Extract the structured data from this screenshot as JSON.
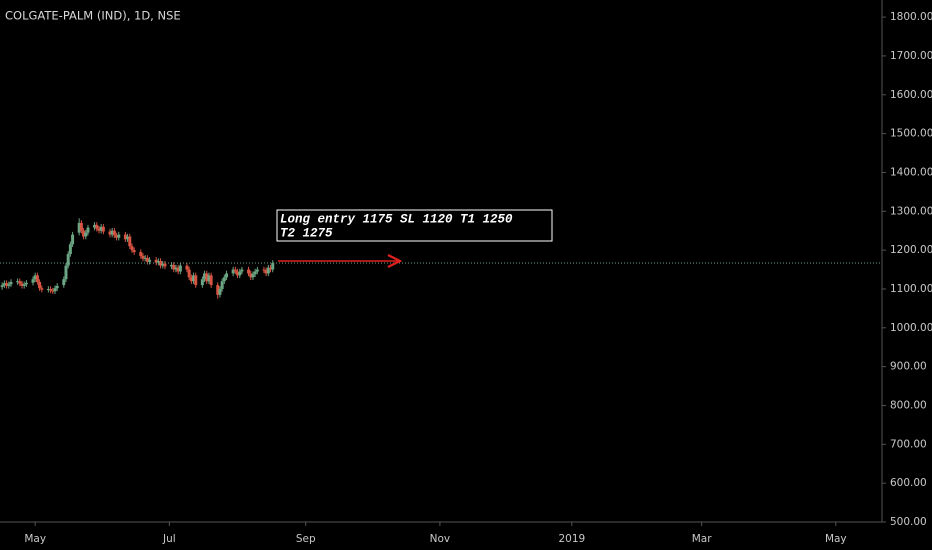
{
  "chart_data": {
    "type": "candlestick",
    "title": "COLGATE-PALM (IND), 1D, NSE",
    "x": [
      106,
      107,
      108,
      109,
      110,
      113,
      114,
      115,
      116,
      117,
      120,
      121,
      122,
      123,
      124,
      127,
      128,
      129,
      130,
      131,
      134,
      135,
      136,
      137,
      138,
      141,
      142,
      143,
      144,
      145,
      148,
      149,
      150,
      151,
      152,
      155,
      156,
      157,
      158,
      159,
      162,
      163,
      164,
      165,
      166,
      169,
      170,
      171,
      172,
      173,
      176,
      177,
      178,
      179,
      180,
      183,
      184,
      185,
      186,
      187,
      190,
      191,
      192,
      193,
      194,
      197,
      198,
      199,
      200,
      201,
      204,
      205,
      206,
      207,
      208,
      211,
      212,
      213,
      214,
      215,
      218,
      219,
      220,
      221,
      222,
      225,
      226,
      227,
      228,
      229
    ],
    "open": [
      1105,
      1110,
      1115,
      1108,
      1112,
      1118,
      1120,
      1114,
      1108,
      1112,
      1116,
      1125,
      1135,
      1118,
      1102,
      1098,
      1100,
      1096,
      1094,
      1102,
      1110,
      1125,
      1160,
      1190,
      1215,
      1245,
      1270,
      1250,
      1235,
      1245,
      1258,
      1265,
      1255,
      1250,
      1260,
      1248,
      1240,
      1250,
      1238,
      1232,
      1240,
      1228,
      1235,
      1210,
      1200,
      1195,
      1185,
      1178,
      1180,
      1170,
      1175,
      1168,
      1172,
      1160,
      1165,
      1158,
      1162,
      1150,
      1155,
      1145,
      1160,
      1150,
      1130,
      1120,
      1135,
      1110,
      1125,
      1140,
      1120,
      1135,
      1110,
      1085,
      1100,
      1120,
      1130,
      1140,
      1150,
      1145,
      1135,
      1145,
      1150,
      1140,
      1130,
      1138,
      1145,
      1150,
      1148,
      1140,
      1155,
      1150
    ],
    "high": [
      1117,
      1122,
      1122,
      1119,
      1125,
      1127,
      1127,
      1121,
      1119,
      1123,
      1132,
      1142,
      1142,
      1125,
      1109,
      1107,
      1107,
      1103,
      1109,
      1115,
      1132,
      1167,
      1197,
      1222,
      1247,
      1282,
      1277,
      1257,
      1252,
      1265,
      1272,
      1272,
      1262,
      1267,
      1267,
      1255,
      1257,
      1257,
      1245,
      1247,
      1247,
      1242,
      1242,
      1217,
      1207,
      1202,
      1192,
      1187,
      1187,
      1182,
      1182,
      1179,
      1179,
      1172,
      1172,
      1169,
      1169,
      1162,
      1162,
      1167,
      1167,
      1157,
      1137,
      1142,
      1142,
      1132,
      1147,
      1147,
      1142,
      1142,
      1117,
      1107,
      1127,
      1137,
      1147,
      1157,
      1157,
      1152,
      1152,
      1157,
      1157,
      1147,
      1145,
      1152,
      1157,
      1157,
      1155,
      1162,
      1162,
      1174
    ],
    "low": [
      1098,
      1103,
      1101,
      1101,
      1105,
      1111,
      1107,
      1101,
      1101,
      1105,
      1109,
      1118,
      1111,
      1095,
      1091,
      1091,
      1089,
      1087,
      1087,
      1095,
      1103,
      1118,
      1153,
      1183,
      1208,
      1238,
      1243,
      1228,
      1228,
      1238,
      1251,
      1248,
      1243,
      1243,
      1241,
      1233,
      1233,
      1231,
      1225,
      1225,
      1221,
      1221,
      1203,
      1193,
      1188,
      1178,
      1171,
      1171,
      1163,
      1163,
      1161,
      1161,
      1153,
      1153,
      1151,
      1151,
      1143,
      1143,
      1138,
      1138,
      1143,
      1123,
      1113,
      1113,
      1103,
      1103,
      1118,
      1113,
      1113,
      1103,
      1075,
      1078,
      1093,
      1113,
      1123,
      1133,
      1138,
      1128,
      1128,
      1138,
      1133,
      1123,
      1123,
      1131,
      1138,
      1141,
      1133,
      1133,
      1143,
      1143
    ],
    "close": [
      1110,
      1115,
      1108,
      1112,
      1118,
      1120,
      1114,
      1108,
      1112,
      1116,
      1125,
      1135,
      1118,
      1102,
      1098,
      1100,
      1096,
      1094,
      1102,
      1108,
      1125,
      1160,
      1190,
      1215,
      1240,
      1270,
      1250,
      1235,
      1245,
      1258,
      1265,
      1255,
      1250,
      1260,
      1248,
      1240,
      1250,
      1238,
      1232,
      1240,
      1228,
      1235,
      1210,
      1200,
      1195,
      1185,
      1178,
      1180,
      1170,
      1175,
      1168,
      1172,
      1160,
      1165,
      1158,
      1162,
      1150,
      1155,
      1145,
      1160,
      1150,
      1130,
      1120,
      1135,
      1110,
      1125,
      1140,
      1120,
      1135,
      1110,
      1085,
      1100,
      1120,
      1130,
      1140,
      1150,
      1145,
      1135,
      1145,
      1150,
      1140,
      1130,
      1138,
      1145,
      1150,
      1148,
      1140,
      1155,
      1150,
      1167
    ],
    "up_color": "#6ba583",
    "down_color": "#d75442",
    "xlim": [
      105,
      506
    ],
    "xticks": [
      {
        "value": 121,
        "label": "May"
      },
      {
        "value": 182,
        "label": "Jul"
      },
      {
        "value": 244,
        "label": "Sep"
      },
      {
        "value": 305,
        "label": "Nov"
      },
      {
        "value": 365,
        "label": "2019"
      },
      {
        "value": 424,
        "label": "Mar"
      },
      {
        "value": 485,
        "label": "May"
      }
    ],
    "ylim": [
      500,
      1844
    ],
    "yticks": [
      {
        "value": 500,
        "label": "500.00"
      },
      {
        "value": 600,
        "label": "600.00"
      },
      {
        "value": 700,
        "label": "700.00"
      },
      {
        "value": 800,
        "label": "800.00"
      },
      {
        "value": 900,
        "label": "900.00"
      },
      {
        "value": 1000,
        "label": "1000.00"
      },
      {
        "value": 1100,
        "label": "1100.00"
      },
      {
        "value": 1200,
        "label": "1200.00"
      },
      {
        "value": 1300,
        "label": "1300.00"
      },
      {
        "value": 1400,
        "label": "1400.00"
      },
      {
        "value": 1500,
        "label": "1500.00"
      },
      {
        "value": 1600,
        "label": "1600.00"
      },
      {
        "value": 1700,
        "label": "1700.00"
      },
      {
        "value": 1800,
        "label": "1800.00"
      }
    ],
    "annotation": [
      "Long entry 1175 SL 1120 T1 1250",
      "T2 1275"
    ]
  }
}
